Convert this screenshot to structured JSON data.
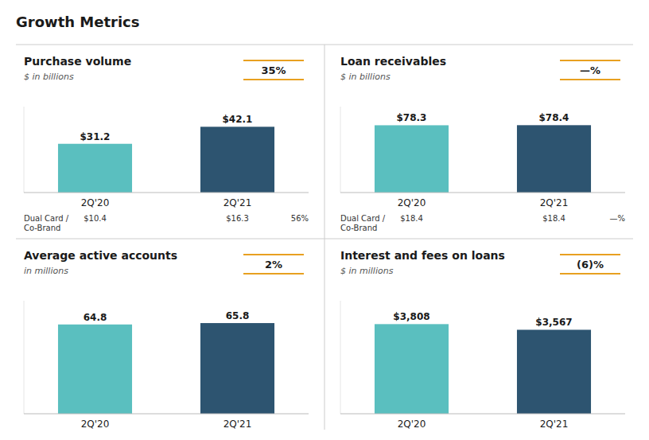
{
  "title": "Growth Metrics",
  "chart_data": [
    {
      "type": "bar",
      "title": "Purchase volume",
      "subtitle": "$ in billions",
      "categories": [
        "2Q'20",
        "2Q'21"
      ],
      "values": [
        31.2,
        42.1
      ],
      "value_labels": [
        "$31.2",
        "$42.1"
      ],
      "colors": [
        "#5abfbf",
        "#2d5470"
      ],
      "ylim": [
        0,
        55
      ],
      "data_labels": true,
      "tick_labels": "x",
      "grid": false,
      "annotations": [
        {
          "text": "35%",
          "color": "#e8a020"
        }
      ],
      "footer": {
        "label": "Dual Card /\nCo-Brand",
        "values": [
          "$10.4",
          "$16.3",
          "56%"
        ]
      }
    },
    {
      "type": "bar",
      "title": "Loan receivables",
      "subtitle": "$ in billions",
      "categories": [
        "2Q'20",
        "2Q'21"
      ],
      "values": [
        78.3,
        78.4
      ],
      "value_labels": [
        "$78.3",
        "$78.4"
      ],
      "colors": [
        "#5abfbf",
        "#2d5470"
      ],
      "ylim": [
        0,
        100
      ],
      "data_labels": true,
      "tick_labels": "x",
      "grid": false,
      "annotations": [
        {
          "text": "—%",
          "color": "#e8a020"
        }
      ],
      "footer": {
        "label": "Dual Card /\nCo-Brand",
        "values": [
          "$18.4",
          "$18.4",
          "—%"
        ]
      }
    },
    {
      "type": "bar",
      "title": "Average active accounts",
      "subtitle": "in millions",
      "categories": [
        "2Q'20",
        "2Q'21"
      ],
      "values": [
        64.8,
        65.8
      ],
      "colors": [
        "#5abfbf",
        "#2d5470"
      ],
      "ylim": [
        0,
        82
      ],
      "data_labels": true,
      "tick_labels": "x",
      "grid": false,
      "annotations": [
        {
          "text": "2%",
          "color": "#e8a020"
        }
      ]
    },
    {
      "type": "bar",
      "title": "Interest and fees on loans",
      "subtitle": "$ in millions",
      "categories": [
        "2Q'20",
        "2Q'21"
      ],
      "values": [
        3808,
        3567
      ],
      "value_labels": [
        "$3,808",
        "$3,567"
      ],
      "colors": [
        "#5abfbf",
        "#2d5470"
      ],
      "ylim": [
        0,
        4800
      ],
      "data_labels": true,
      "tick_labels": "x",
      "grid": false,
      "annotations": [
        {
          "text": "(6)%",
          "color": "#e8a020"
        }
      ]
    }
  ]
}
